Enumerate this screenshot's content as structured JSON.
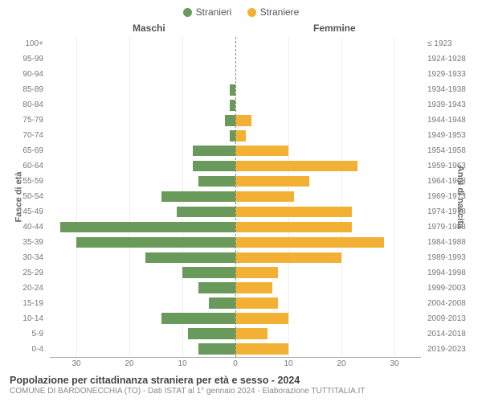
{
  "legend": {
    "male": {
      "label": "Stranieri",
      "color": "#6a9a5b"
    },
    "female": {
      "label": "Straniere",
      "color": "#f2b134"
    }
  },
  "column_titles": {
    "left": "Maschi",
    "right": "Femmine"
  },
  "axis_labels": {
    "left": "Fasce di età",
    "right": "Anni di nascita"
  },
  "y_left": [
    "100+",
    "95-99",
    "90-94",
    "85-89",
    "80-84",
    "75-79",
    "70-74",
    "65-69",
    "60-64",
    "55-59",
    "50-54",
    "45-49",
    "40-44",
    "35-39",
    "30-34",
    "25-29",
    "20-24",
    "15-19",
    "10-14",
    "5-9",
    "0-4"
  ],
  "y_right": [
    "≤ 1923",
    "1924-1928",
    "1929-1933",
    "1934-1938",
    "1939-1943",
    "1944-1948",
    "1949-1953",
    "1954-1958",
    "1959-1963",
    "1964-1968",
    "1969-1973",
    "1974-1978",
    "1979-1983",
    "1984-1988",
    "1989-1993",
    "1994-1998",
    "1999-2003",
    "2004-2008",
    "2009-2013",
    "2014-2018",
    "2019-2023"
  ],
  "male_values": [
    0,
    0,
    0,
    1,
    1,
    2,
    1,
    8,
    8,
    7,
    14,
    11,
    33,
    30,
    17,
    10,
    7,
    5,
    14,
    9,
    7
  ],
  "female_values": [
    0,
    0,
    0,
    0,
    0,
    3,
    2,
    10,
    23,
    14,
    11,
    22,
    22,
    28,
    20,
    8,
    7,
    8,
    10,
    6,
    10
  ],
  "x_axis": {
    "max": 35,
    "ticks_left": [
      30,
      20,
      10,
      0
    ],
    "ticks_right": [
      0,
      10,
      20,
      30
    ]
  },
  "colors": {
    "male_bar": "#6a9a5b",
    "female_bar": "#f2b134",
    "grid": "#eeeeee",
    "center_line": "#888888",
    "background": "#ffffff"
  },
  "style": {
    "tick_fontsize": 10,
    "legend_fontsize": 12,
    "title_fontsize": 12.5,
    "bar_height_pct": 72
  },
  "footer": {
    "title": "Popolazione per cittadinanza straniera per età e sesso - 2024",
    "subtitle": "COMUNE DI BARDONECCHIA (TO) - Dati ISTAT al 1° gennaio 2024 - Elaborazione TUTTITALIA.IT"
  }
}
